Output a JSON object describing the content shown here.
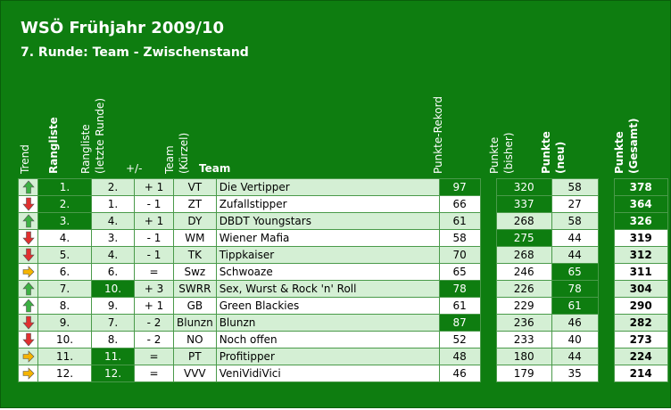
{
  "title": "WSÖ Frühjahr 2009/10",
  "subtitle": "7. Runde: Team - Zwischenstand",
  "headers": {
    "trend": "Trend",
    "rank": "Rangliste",
    "prev_rank": [
      "Rangliste",
      "(letzte Runde)"
    ],
    "change": "+/-",
    "short": [
      "Team",
      "(Kürzel)"
    ],
    "team": "Team",
    "record": "Punkte-Rekord",
    "points_prev": [
      "Punkte",
      "(bisher)"
    ],
    "points_new": [
      "Punkte",
      "(neu)"
    ],
    "points_total": [
      "Punkte",
      "(Gesamt)"
    ]
  },
  "colors": {
    "background": "#0e7d10",
    "row_alt": "#d4efd4",
    "highlight": "#0e7d10",
    "trend_up": "#3cb043",
    "trend_down": "#e03030",
    "trend_same": "#f5b400"
  },
  "rows": [
    {
      "trend": "up",
      "rank": "1.",
      "prev": "2.",
      "change": "+ 1",
      "short": "VT",
      "team": "Die Vertipper",
      "record": "97",
      "pts_prev": "320",
      "pts_new": "58",
      "total": "378",
      "hl": {
        "rank": true,
        "record": true,
        "pts_prev": true,
        "total": true
      }
    },
    {
      "trend": "down",
      "rank": "2.",
      "prev": "1.",
      "change": "- 1",
      "short": "ZT",
      "team": "Zufallstipper",
      "record": "66",
      "pts_prev": "337",
      "pts_new": "27",
      "total": "364",
      "hl": {
        "rank": true,
        "pts_prev": true,
        "total": true
      }
    },
    {
      "trend": "up",
      "rank": "3.",
      "prev": "4.",
      "change": "+ 1",
      "short": "DY",
      "team": "DBDT Youngstars",
      "record": "61",
      "pts_prev": "268",
      "pts_new": "58",
      "total": "326",
      "hl": {
        "rank": true,
        "total": true
      }
    },
    {
      "trend": "down",
      "rank": "4.",
      "prev": "3.",
      "change": "- 1",
      "short": "WM",
      "team": "Wiener Mafia",
      "record": "58",
      "pts_prev": "275",
      "pts_new": "44",
      "total": "319",
      "hl": {
        "pts_prev": true
      }
    },
    {
      "trend": "down",
      "rank": "5.",
      "prev": "4.",
      "change": "- 1",
      "short": "TK",
      "team": "Tippkaiser",
      "record": "70",
      "pts_prev": "268",
      "pts_new": "44",
      "total": "312",
      "hl": {}
    },
    {
      "trend": "same",
      "rank": "6.",
      "prev": "6.",
      "change": "=",
      "short": "Swz",
      "team": "Schwoaze",
      "record": "65",
      "pts_prev": "246",
      "pts_new": "65",
      "total": "311",
      "hl": {
        "pts_new": true
      }
    },
    {
      "trend": "up",
      "rank": "7.",
      "prev": "10.",
      "change": "+ 3",
      "short": "SWRR",
      "team": "Sex, Wurst & Rock 'n' Roll",
      "record": "78",
      "pts_prev": "226",
      "pts_new": "78",
      "total": "304",
      "hl": {
        "prev": true,
        "record": true,
        "pts_new": true
      }
    },
    {
      "trend": "up",
      "rank": "8.",
      "prev": "9.",
      "change": "+ 1",
      "short": "GB",
      "team": "Green Blackies",
      "record": "61",
      "pts_prev": "229",
      "pts_new": "61",
      "total": "290",
      "hl": {
        "pts_new": true
      }
    },
    {
      "trend": "down",
      "rank": "9.",
      "prev": "7.",
      "change": "- 2",
      "short": "Blunzn",
      "team": "Blunzn",
      "record": "87",
      "pts_prev": "236",
      "pts_new": "46",
      "total": "282",
      "hl": {
        "record": true
      }
    },
    {
      "trend": "down",
      "rank": "10.",
      "prev": "8.",
      "change": "- 2",
      "short": "NO",
      "team": "Noch offen",
      "record": "52",
      "pts_prev": "233",
      "pts_new": "40",
      "total": "273",
      "hl": {}
    },
    {
      "trend": "same",
      "rank": "11.",
      "prev": "11.",
      "change": "=",
      "short": "PT",
      "team": "Profitipper",
      "record": "48",
      "pts_prev": "180",
      "pts_new": "44",
      "total": "224",
      "hl": {
        "prev": true
      }
    },
    {
      "trend": "same",
      "rank": "12.",
      "prev": "12.",
      "change": "=",
      "short": "VVV",
      "team": "VeniVidiVici",
      "record": "46",
      "pts_prev": "179",
      "pts_new": "35",
      "total": "214",
      "hl": {
        "prev": true
      }
    }
  ]
}
